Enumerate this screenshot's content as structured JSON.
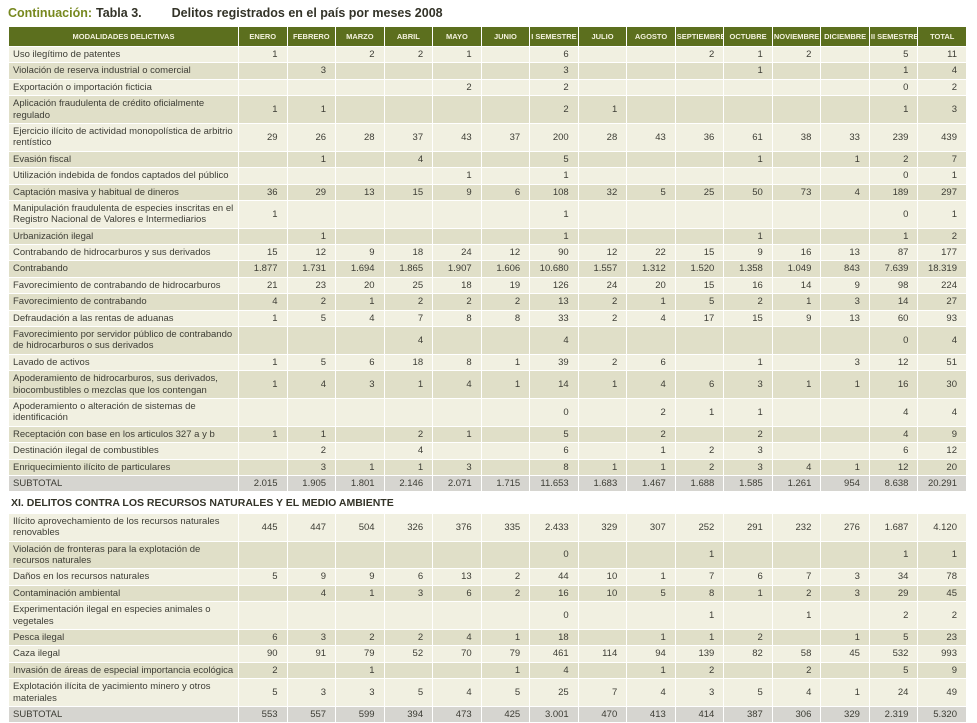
{
  "title": {
    "prefix": "Continuación:",
    "table_ref": "Tabla 3.",
    "text": "Delitos registrados en el país por meses 2008"
  },
  "colors": {
    "header_bg": "#5c6f1e",
    "header_text": "#f3f1dc",
    "row_light": "#f1f0e1",
    "row_dark": "#e0dfc8",
    "subtotal_bg": "#d6d5d0",
    "title_accent": "#77881f",
    "text": "#3d3d35"
  },
  "table": {
    "columns": [
      "MODALIDADES DELICTIVAS",
      "ENERO",
      "FEBRERO",
      "MARZO",
      "ABRIL",
      "MAYO",
      "JUNIO",
      "I SEMESTRE",
      "JULIO",
      "AGOSTO",
      "SEPTIEMBRE",
      "OCTUBRE",
      "NOVIEMBRE",
      "DICIEMBRE",
      "II SEMESTRE",
      "TOTAL"
    ],
    "sections": [
      {
        "heading": null,
        "rows": [
          {
            "type": "data",
            "label": "Uso ilegítimo de patentes",
            "values": [
              "1",
              "",
              "2",
              "2",
              "1",
              "",
              "6",
              "",
              "",
              "2",
              "1",
              "2",
              "",
              "5",
              "11"
            ]
          },
          {
            "type": "data",
            "label": "Violación de reserva industrial o comercial",
            "values": [
              "",
              "3",
              "",
              "",
              "",
              "",
              "3",
              "",
              "",
              "",
              "1",
              "",
              "",
              "1",
              "4"
            ]
          },
          {
            "type": "data",
            "label": "Exportación o importación ficticia",
            "values": [
              "",
              "",
              "",
              "",
              "2",
              "",
              "2",
              "",
              "",
              "",
              "",
              "",
              "",
              "0",
              "2"
            ]
          },
          {
            "type": "data",
            "label": "Aplicación fraudulenta de crédito oficialmente regulado",
            "values": [
              "1",
              "1",
              "",
              "",
              "",
              "",
              "2",
              "1",
              "",
              "",
              "",
              "",
              "",
              "1",
              "3"
            ]
          },
          {
            "type": "data",
            "label": "Ejercicio ilícito de actividad monopolística de arbitrio rentístico",
            "values": [
              "29",
              "26",
              "28",
              "37",
              "43",
              "37",
              "200",
              "28",
              "43",
              "36",
              "61",
              "38",
              "33",
              "239",
              "439"
            ]
          },
          {
            "type": "data",
            "label": "Evasión fiscal",
            "values": [
              "",
              "1",
              "",
              "4",
              "",
              "",
              "5",
              "",
              "",
              "",
              "1",
              "",
              "1",
              "2",
              "7"
            ]
          },
          {
            "type": "data",
            "label": "Utilización indebida de fondos captados del público",
            "values": [
              "",
              "",
              "",
              "",
              "1",
              "",
              "1",
              "",
              "",
              "",
              "",
              "",
              "",
              "0",
              "1"
            ]
          },
          {
            "type": "data",
            "label": "Captación masiva y habitual de dineros",
            "values": [
              "36",
              "29",
              "13",
              "15",
              "9",
              "6",
              "108",
              "32",
              "5",
              "25",
              "50",
              "73",
              "4",
              "189",
              "297"
            ]
          },
          {
            "type": "data",
            "label": "Manipulación fraudulenta de especies inscritas en el Registro Nacional de Valores e Intermediarios",
            "values": [
              "1",
              "",
              "",
              "",
              "",
              "",
              "1",
              "",
              "",
              "",
              "",
              "",
              "",
              "0",
              "1"
            ]
          },
          {
            "type": "data",
            "label": "Urbanización ilegal",
            "values": [
              "",
              "1",
              "",
              "",
              "",
              "",
              "1",
              "",
              "",
              "",
              "1",
              "",
              "",
              "1",
              "2"
            ]
          },
          {
            "type": "data",
            "label": "Contrabando de hidrocarburos y sus derivados",
            "values": [
              "15",
              "12",
              "9",
              "18",
              "24",
              "12",
              "90",
              "12",
              "22",
              "15",
              "9",
              "16",
              "13",
              "87",
              "177"
            ]
          },
          {
            "type": "data",
            "label": "Contrabando",
            "values": [
              "1.877",
              "1.731",
              "1.694",
              "1.865",
              "1.907",
              "1.606",
              "10.680",
              "1.557",
              "1.312",
              "1.520",
              "1.358",
              "1.049",
              "843",
              "7.639",
              "18.319"
            ]
          },
          {
            "type": "data",
            "label": "Favorecimiento de contrabando de hidrocarburos",
            "values": [
              "21",
              "23",
              "20",
              "25",
              "18",
              "19",
              "126",
              "24",
              "20",
              "15",
              "16",
              "14",
              "9",
              "98",
              "224"
            ]
          },
          {
            "type": "data",
            "label": "Favorecimiento de contrabando",
            "values": [
              "4",
              "2",
              "1",
              "2",
              "2",
              "2",
              "13",
              "2",
              "1",
              "5",
              "2",
              "1",
              "3",
              "14",
              "27"
            ]
          },
          {
            "type": "data",
            "label": "Defraudación a las rentas de aduanas",
            "values": [
              "1",
              "5",
              "4",
              "7",
              "8",
              "8",
              "33",
              "2",
              "4",
              "17",
              "15",
              "9",
              "13",
              "60",
              "93"
            ]
          },
          {
            "type": "data",
            "label": "Favorecimiento por servidor público de contrabando de hidrocarburos o sus derivados",
            "values": [
              "",
              "",
              "",
              "4",
              "",
              "",
              "4",
              "",
              "",
              "",
              "",
              "",
              "",
              "0",
              "4"
            ]
          },
          {
            "type": "data",
            "label": "Lavado de activos",
            "values": [
              "1",
              "5",
              "6",
              "18",
              "8",
              "1",
              "39",
              "2",
              "6",
              "",
              "1",
              "",
              "3",
              "12",
              "51"
            ]
          },
          {
            "type": "data",
            "label": "Apoderamiento de hidrocarburos, sus derivados, biocombustibles o mezclas que los contengan",
            "values": [
              "1",
              "4",
              "3",
              "1",
              "4",
              "1",
              "14",
              "1",
              "4",
              "6",
              "3",
              "1",
              "1",
              "16",
              "30"
            ]
          },
          {
            "type": "data",
            "label": "Apoderamiento o alteración de sistemas de identificación",
            "values": [
              "",
              "",
              "",
              "",
              "",
              "",
              "0",
              "",
              "2",
              "1",
              "1",
              "",
              "",
              "4",
              "4"
            ]
          },
          {
            "type": "data",
            "label": "Receptación con base en los articulos 327 a y b",
            "values": [
              "1",
              "1",
              "",
              "2",
              "1",
              "",
              "5",
              "",
              "2",
              "",
              "2",
              "",
              "",
              "4",
              "9"
            ]
          },
          {
            "type": "data",
            "label": "Destinación ilegal de combustibles",
            "values": [
              "",
              "2",
              "",
              "4",
              "",
              "",
              "6",
              "",
              "1",
              "2",
              "3",
              "",
              "",
              "6",
              "12"
            ]
          },
          {
            "type": "data",
            "label": "Enriquecimiento ilícito de particulares",
            "values": [
              "",
              "3",
              "1",
              "1",
              "3",
              "",
              "8",
              "1",
              "1",
              "2",
              "3",
              "4",
              "1",
              "12",
              "20"
            ]
          },
          {
            "type": "subtotal",
            "label": "SUBTOTAL",
            "values": [
              "2.015",
              "1.905",
              "1.801",
              "2.146",
              "2.071",
              "1.715",
              "11.653",
              "1.683",
              "1.467",
              "1.688",
              "1.585",
              "1.261",
              "954",
              "8.638",
              "20.291"
            ]
          }
        ]
      },
      {
        "heading": "XI. DELITOS CONTRA LOS RECURSOS NATURALES Y EL MEDIO AMBIENTE",
        "rows": [
          {
            "type": "data",
            "label": "Ilícito aprovechamiento de los recursos naturales renovables",
            "values": [
              "445",
              "447",
              "504",
              "326",
              "376",
              "335",
              "2.433",
              "329",
              "307",
              "252",
              "291",
              "232",
              "276",
              "1.687",
              "4.120"
            ]
          },
          {
            "type": "data",
            "label": "Violación de fronteras para la explotación de recursos naturales",
            "values": [
              "",
              "",
              "",
              "",
              "",
              "",
              "0",
              "",
              "",
              "1",
              "",
              "",
              "",
              "1",
              "1"
            ]
          },
          {
            "type": "data",
            "label": "Daños en los recursos naturales",
            "values": [
              "5",
              "9",
              "9",
              "6",
              "13",
              "2",
              "44",
              "10",
              "1",
              "7",
              "6",
              "7",
              "3",
              "34",
              "78"
            ]
          },
          {
            "type": "data",
            "label": "Contaminación ambiental",
            "values": [
              "",
              "4",
              "1",
              "3",
              "6",
              "2",
              "16",
              "10",
              "5",
              "8",
              "1",
              "2",
              "3",
              "29",
              "45"
            ]
          },
          {
            "type": "data",
            "label": "Experimentación ilegal en especies animales o vegetales",
            "values": [
              "",
              "",
              "",
              "",
              "",
              "",
              "0",
              "",
              "",
              "1",
              "",
              "1",
              "",
              "2",
              "2"
            ]
          },
          {
            "type": "data",
            "label": "Pesca ilegal",
            "values": [
              "6",
              "3",
              "2",
              "2",
              "4",
              "1",
              "18",
              "",
              "1",
              "1",
              "2",
              "",
              "1",
              "5",
              "23"
            ]
          },
          {
            "type": "data",
            "label": "Caza ilegal",
            "values": [
              "90",
              "91",
              "79",
              "52",
              "70",
              "79",
              "461",
              "114",
              "94",
              "139",
              "82",
              "58",
              "45",
              "532",
              "993"
            ]
          },
          {
            "type": "data",
            "label": "Invasión de áreas de especial importancia ecológica",
            "values": [
              "2",
              "",
              "1",
              "",
              "",
              "1",
              "4",
              "",
              "1",
              "2",
              "",
              "2",
              "",
              "5",
              "9"
            ]
          },
          {
            "type": "data",
            "label": "Explotación ilícita de yacimiento minero y otros materiales",
            "values": [
              "5",
              "3",
              "3",
              "5",
              "4",
              "5",
              "25",
              "7",
              "4",
              "3",
              "5",
              "4",
              "1",
              "24",
              "49"
            ]
          },
          {
            "type": "subtotal",
            "label": "SUBTOTAL",
            "values": [
              "553",
              "557",
              "599",
              "394",
              "473",
              "425",
              "3.001",
              "470",
              "413",
              "414",
              "387",
              "306",
              "329",
              "2.319",
              "5.320"
            ]
          }
        ]
      }
    ]
  }
}
